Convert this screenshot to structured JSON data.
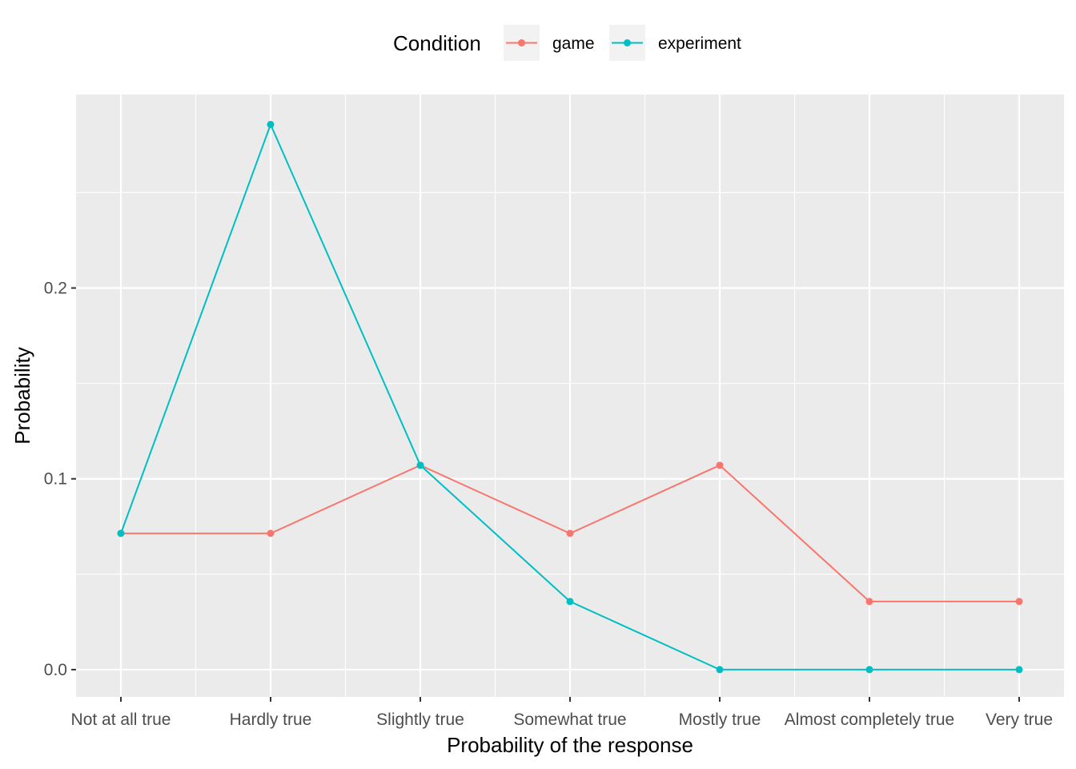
{
  "chart_data": {
    "type": "line",
    "xlabel": "Probability of the response",
    "ylabel": "Probability",
    "categories": [
      "Not at all true",
      "Hardly true",
      "Slightly true",
      "Somewhat true",
      "Mostly true",
      "Almost completely true",
      "Very true"
    ],
    "series": [
      {
        "name": "game",
        "color": "#F8766D",
        "values": [
          0.0714,
          0.0714,
          0.1071,
          0.0714,
          0.1071,
          0.0357,
          0.0357
        ]
      },
      {
        "name": "experiment",
        "color": "#00BFC4",
        "values": [
          0.0714,
          0.2857,
          0.1071,
          0.0357,
          0.0,
          0.0,
          0.0
        ]
      }
    ],
    "yticks": [
      0.0,
      0.1,
      0.2
    ],
    "ytick_labels": [
      "0.0",
      "0.1",
      "0.2"
    ],
    "ylim": [
      -0.0143,
      0.3014
    ],
    "grid": true,
    "legend": {
      "title": "Condition",
      "position": "top"
    },
    "panel_background": "#EBEBEB",
    "grid_color": "#FFFFFF"
  }
}
